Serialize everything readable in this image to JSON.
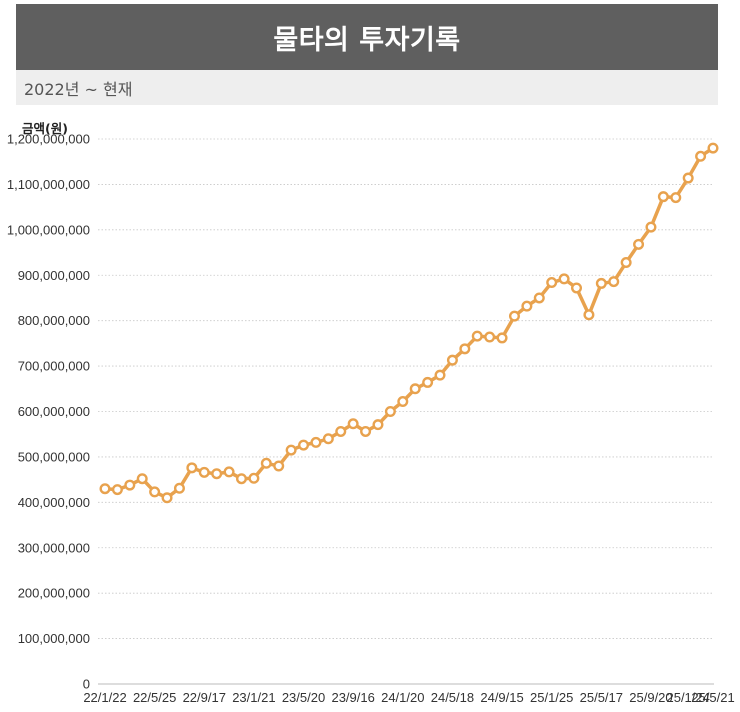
{
  "header": {
    "title": "물타의 투자기록",
    "subtitle": "2022년 ~ 현재"
  },
  "colors": {
    "line": "#e8a24e",
    "grid": "#c8c8c8",
    "header_bg": "#5f5f5f",
    "subheader_bg": "#eeeeee"
  },
  "chart_data": {
    "type": "line",
    "title": "물타의 투자기록",
    "subtitle": "2022년 ~ 현재",
    "xlabel": "",
    "ylabel": "금액(원)",
    "ylim": [
      0,
      1200000000
    ],
    "yticks": [
      0,
      100000000,
      200000000,
      300000000,
      400000000,
      500000000,
      600000000,
      700000000,
      800000000,
      900000000,
      1000000000,
      1100000000,
      1200000000
    ],
    "ytick_labels": [
      "0",
      "100,000,000",
      "200,000,000",
      "300,000,000",
      "400,000,000",
      "500,000,000",
      "600,000,000",
      "700,000,000",
      "800,000,000",
      "900,000,000",
      "1,000,000,000",
      "1,100,000,000",
      "1,200,000,000"
    ],
    "xtick_labels": [
      {
        "index": 0,
        "label": "22/1/22"
      },
      {
        "index": 4,
        "label": "22/5/25"
      },
      {
        "index": 8,
        "label": "22/9/17"
      },
      {
        "index": 12,
        "label": "23/1/21"
      },
      {
        "index": 16,
        "label": "23/5/20"
      },
      {
        "index": 20,
        "label": "23/9/16"
      },
      {
        "index": 24,
        "label": "24/1/20"
      },
      {
        "index": 28,
        "label": "24/5/18"
      },
      {
        "index": 32,
        "label": "24/9/15"
      },
      {
        "index": 36,
        "label": "25/1/25"
      },
      {
        "index": 40,
        "label": "25/5/17"
      },
      {
        "index": 44,
        "label": "25/9/20"
      },
      {
        "index": 47,
        "label": "25/1/24"
      },
      {
        "index": 49,
        "label": "25/5/21"
      }
    ],
    "grid": true,
    "legend": "none",
    "series": [
      {
        "values": [
          430000000,
          428000000,
          438000000,
          452000000,
          423000000,
          410000000,
          431000000,
          476000000,
          466000000,
          463000000,
          467000000,
          452000000,
          453000000,
          486000000,
          480000000,
          515000000,
          526000000,
          532000000,
          540000000,
          556000000,
          573000000,
          556000000,
          571000000,
          600000000,
          622000000,
          650000000,
          664000000,
          680000000,
          713000000,
          738000000,
          766000000,
          764000000,
          762000000,
          810000000,
          832000000,
          850000000,
          884000000,
          892000000,
          872000000,
          813000000,
          882000000,
          886000000,
          928000000,
          968000000,
          1006000000,
          1073000000,
          1071000000,
          1114000000,
          1162000000,
          1180000000
        ]
      }
    ]
  }
}
